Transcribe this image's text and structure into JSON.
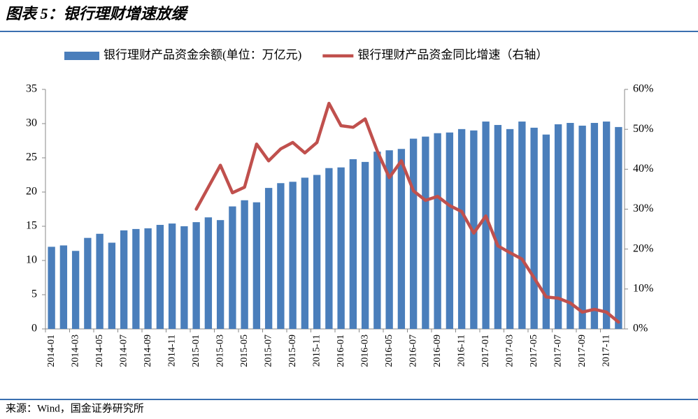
{
  "chart_data": {
    "type": "bar",
    "title": "图表 5：银行理财增速放缓",
    "source": "来源：Wind，国金证券研究所",
    "categories": [
      "2014-01",
      null,
      "2014-03",
      null,
      "2014-05",
      null,
      "2014-07",
      null,
      "2014-09",
      null,
      "2014-11",
      null,
      "2015-01",
      null,
      "2015-03",
      null,
      "2015-05",
      null,
      "2015-07",
      null,
      "2015-09",
      null,
      "2015-11",
      null,
      "2016-01",
      null,
      "2016-03",
      null,
      "2016-05",
      null,
      "2016-07",
      null,
      "2016-09",
      null,
      "2016-11",
      null,
      "2017-01",
      null,
      "2017-03",
      null,
      "2017-05",
      null,
      "2017-07",
      null,
      "2017-09",
      null,
      "2017-11",
      null
    ],
    "series": [
      {
        "name": "银行理财产品资金余额(单位：万亿元)",
        "type": "bar",
        "color": "#4a7ebb",
        "values": [
          12.0,
          12.2,
          11.4,
          13.3,
          13.9,
          12.6,
          14.4,
          14.6,
          14.7,
          15.2,
          15.4,
          15.0,
          15.6,
          16.3,
          15.9,
          17.9,
          18.8,
          18.5,
          20.6,
          21.3,
          21.5,
          22.1,
          22.5,
          23.5,
          23.6,
          24.8,
          24.4,
          25.9,
          26.1,
          26.3,
          27.8,
          28.1,
          28.6,
          28.7,
          29.2,
          29.0,
          30.3,
          29.8,
          29.2,
          30.3,
          29.4,
          28.4,
          29.9,
          30.1,
          29.7,
          30.1,
          30.3,
          29.5
        ]
      },
      {
        "name": "银行理财产品资金同比增速（右轴）",
        "type": "line",
        "color": "#c0504d",
        "axis": "y2",
        "values": [
          null,
          null,
          null,
          null,
          null,
          null,
          null,
          null,
          null,
          null,
          null,
          null,
          30.0,
          35.5,
          41.0,
          34.1,
          35.5,
          46.3,
          42.1,
          45.1,
          46.7,
          44.1,
          46.7,
          56.5,
          50.9,
          50.5,
          52.6,
          44.6,
          37.9,
          42.1,
          34.6,
          32.2,
          33.2,
          30.9,
          29.4,
          24.0,
          28.3,
          20.8,
          19.1,
          17.5,
          12.8,
          8.0,
          7.7,
          6.5,
          4.2,
          4.9,
          4.2,
          1.7
        ]
      }
    ],
    "ylim": [
      0,
      35
    ],
    "yticks": [
      0,
      5,
      10,
      15,
      20,
      25,
      30,
      35
    ],
    "y2lim": [
      0,
      60
    ],
    "y2ticks": [
      {
        "value": 0,
        "label": "0%"
      },
      {
        "value": 10,
        "label": "10%"
      },
      {
        "value": 20,
        "label": "20%"
      },
      {
        "value": 30,
        "label": "30%"
      },
      {
        "value": 40,
        "label": "40%"
      },
      {
        "value": 50,
        "label": "50%"
      },
      {
        "value": 60,
        "label": "60%"
      }
    ],
    "legend": "top"
  }
}
